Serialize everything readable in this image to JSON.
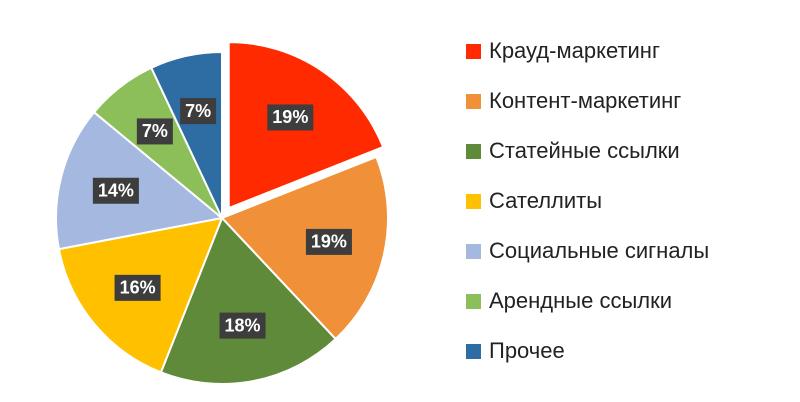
{
  "chart_data": {
    "type": "pie",
    "categories": [
      "Крауд-маркетинг",
      "Контент-маркетинг",
      "Статейные ссылки",
      "Сателлиты",
      "Социальные сигналы",
      "Арендные ссылки",
      "Прочее"
    ],
    "values": [
      19,
      19,
      18,
      16,
      14,
      7,
      7
    ],
    "value_labels": [
      "19%",
      "19%",
      "18%",
      "16%",
      "14%",
      "7%",
      "7%"
    ],
    "colors": [
      "#ff2a00",
      "#f0913a",
      "#5f8a3a",
      "#ffc000",
      "#a4b8e0",
      "#8cbf5a",
      "#2e6da4"
    ],
    "exploded": [
      0
    ],
    "legend": "right"
  }
}
